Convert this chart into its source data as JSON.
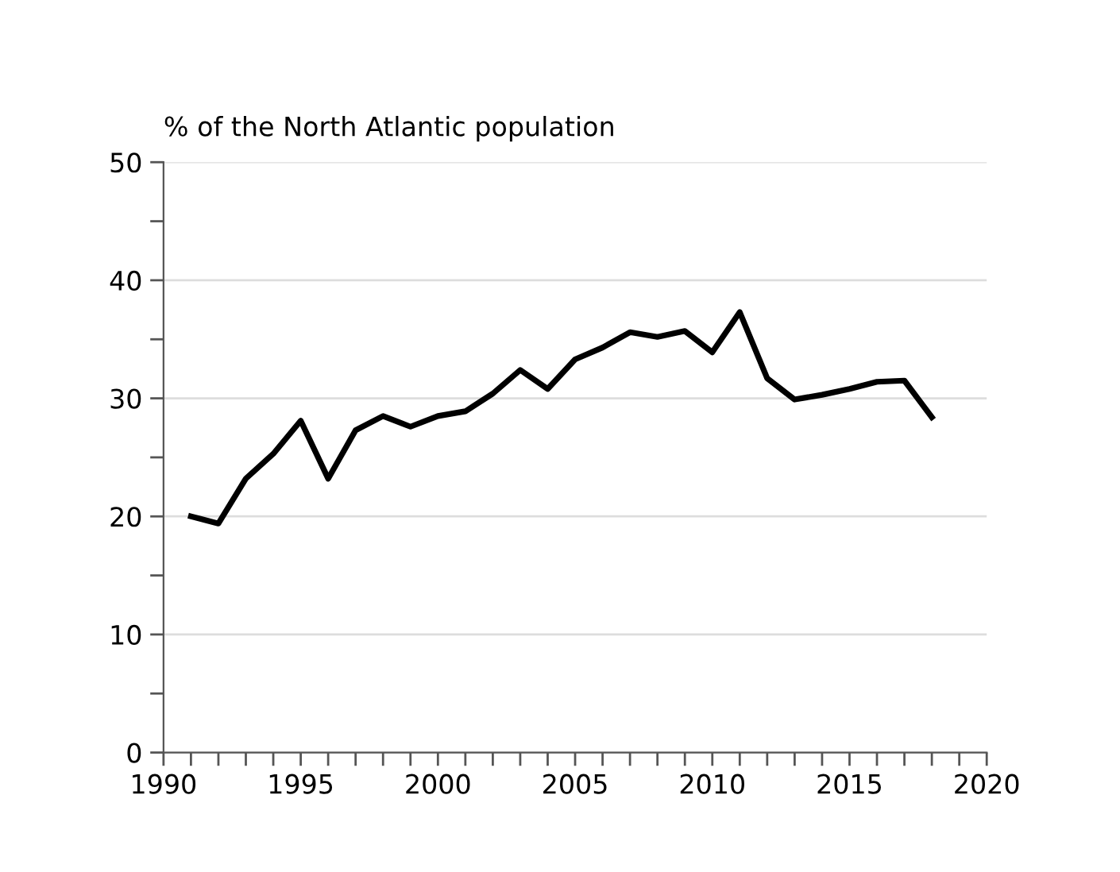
{
  "chart_data": {
    "type": "line",
    "ylabel": "% of the North Atlantic population",
    "x": [
      1991,
      1992,
      1993,
      1994,
      1995,
      1996,
      1997,
      1998,
      1999,
      2000,
      2001,
      2002,
      2003,
      2004,
      2005,
      2006,
      2007,
      2008,
      2009,
      2010,
      2011,
      2012,
      2013,
      2014,
      2015,
      2016,
      2017,
      2018
    ],
    "series": [
      {
        "color": "#000000",
        "values": [
          20.0,
          19.4,
          23.2,
          25.3,
          28.1,
          23.2,
          27.3,
          28.5,
          27.6,
          28.5,
          28.9,
          30.4,
          32.4,
          30.8,
          33.3,
          34.3,
          35.6,
          35.2,
          35.7,
          33.9,
          37.3,
          31.7,
          29.9,
          30.3,
          30.8,
          31.4,
          31.5,
          28.4
        ]
      }
    ],
    "xlim": [
      1990,
      2020
    ],
    "ylim": [
      0,
      50
    ],
    "xticks": [
      1990,
      {
        "value": 1991,
        "label": null
      },
      {
        "value": 1992,
        "label": null
      },
      {
        "value": 1993,
        "label": null
      },
      {
        "value": 1994,
        "label": null
      },
      1995,
      {
        "value": 1996,
        "label": null
      },
      {
        "value": 1997,
        "label": null
      },
      {
        "value": 1998,
        "label": null
      },
      {
        "value": 1999,
        "label": null
      },
      2000,
      {
        "value": 2001,
        "label": null
      },
      {
        "value": 2002,
        "label": null
      },
      {
        "value": 2003,
        "label": null
      },
      {
        "value": 2004,
        "label": null
      },
      2005,
      {
        "value": 2006,
        "label": null
      },
      {
        "value": 2007,
        "label": null
      },
      {
        "value": 2008,
        "label": null
      },
      {
        "value": 2009,
        "label": null
      },
      2010,
      {
        "value": 2011,
        "label": null
      },
      {
        "value": 2012,
        "label": null
      },
      {
        "value": 2013,
        "label": null
      },
      {
        "value": 2014,
        "label": null
      },
      2015,
      {
        "value": 2016,
        "label": null
      },
      {
        "value": 2017,
        "label": null
      },
      {
        "value": 2018,
        "label": null
      },
      {
        "value": 2019,
        "label": null
      },
      2020
    ],
    "yticks": [
      0,
      {
        "value": 5,
        "label": null
      },
      10,
      {
        "value": 15,
        "label": null
      },
      20,
      {
        "value": 25,
        "label": null
      },
      30,
      {
        "value": 35,
        "label": null
      },
      40,
      {
        "value": 45,
        "label": null
      },
      50
    ],
    "grid": "y",
    "legend": false,
    "marker": "none",
    "line_style": "solid"
  }
}
